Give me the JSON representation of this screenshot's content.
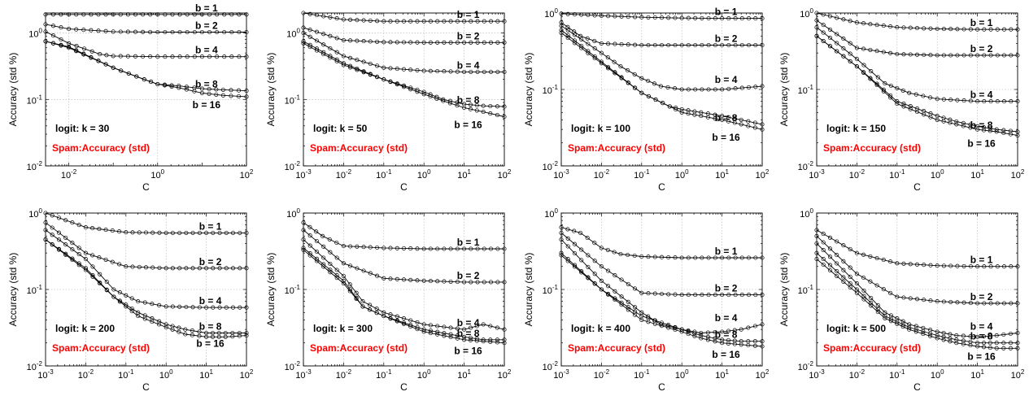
{
  "chart_data": [
    {
      "type": "line",
      "log_x": true,
      "log_y": true,
      "xlabel": "C",
      "ylabel": "Accuracy (std %)",
      "xlim": [
        0.003,
        100
      ],
      "ylim": [
        0.01,
        2
      ],
      "xticks": [
        "10^-2",
        "10^0",
        "10^2"
      ],
      "yticks": [
        "10^-2",
        "10^-1",
        "10^0"
      ],
      "annotations": [
        "logit: k = 30",
        "Spam:Accuracy (std)"
      ],
      "series": [
        {
          "name": "b = 1",
          "x": [
            0.003,
            0.01,
            0.1,
            1,
            10,
            100
          ],
          "values": [
            1.9,
            1.9,
            1.9,
            1.9,
            1.9,
            1.9
          ]
        },
        {
          "name": "b = 2",
          "x": [
            0.003,
            0.01,
            0.1,
            1,
            10,
            100
          ],
          "values": [
            1.35,
            1.15,
            1.05,
            1.03,
            1.03,
            1.03
          ]
        },
        {
          "name": "b = 4",
          "x": [
            0.003,
            0.01,
            0.05,
            0.1,
            1,
            10,
            100
          ],
          "values": [
            1.05,
            0.7,
            0.48,
            0.45,
            0.44,
            0.44,
            0.44
          ]
        },
        {
          "name": "b = 8",
          "x": [
            0.003,
            0.01,
            0.1,
            0.5,
            1,
            3,
            10,
            30,
            100
          ],
          "values": [
            0.75,
            0.62,
            0.3,
            0.2,
            0.17,
            0.16,
            0.145,
            0.14,
            0.135
          ]
        },
        {
          "name": "b = 16",
          "x": [
            0.003,
            0.01,
            0.1,
            0.5,
            1,
            3,
            10,
            30,
            100
          ],
          "values": [
            0.75,
            0.6,
            0.3,
            0.2,
            0.17,
            0.15,
            0.125,
            0.115,
            0.11
          ]
        }
      ]
    },
    {
      "type": "line",
      "log_x": true,
      "log_y": true,
      "xlabel": "C",
      "ylabel": "Accuracy (std %)",
      "xlim": [
        0.001,
        100
      ],
      "ylim": [
        0.01,
        2
      ],
      "xticks": [
        "10^-3",
        "10^-2",
        "10^-1",
        "10^0",
        "10^1",
        "10^2"
      ],
      "yticks": [
        "10^-2",
        "10^-1",
        "10^0"
      ],
      "annotations": [
        "logit: k = 50",
        "Spam:Accuracy (std)"
      ],
      "series": [
        {
          "name": "b = 1",
          "x": [
            0.001,
            0.01,
            0.1,
            1,
            10,
            100
          ],
          "values": [
            2.0,
            1.6,
            1.5,
            1.5,
            1.5,
            1.5
          ]
        },
        {
          "name": "b = 2",
          "x": [
            0.001,
            0.01,
            0.1,
            1,
            10,
            100
          ],
          "values": [
            1.2,
            0.78,
            0.73,
            0.72,
            0.72,
            0.72
          ]
        },
        {
          "name": "b = 4",
          "x": [
            0.001,
            0.01,
            0.1,
            1,
            10,
            100
          ],
          "values": [
            1.0,
            0.45,
            0.3,
            0.27,
            0.26,
            0.26
          ]
        },
        {
          "name": "b = 8",
          "x": [
            0.001,
            0.01,
            0.1,
            1,
            3,
            10,
            30,
            100
          ],
          "values": [
            0.75,
            0.35,
            0.2,
            0.13,
            0.1,
            0.085,
            0.08,
            0.078
          ]
        },
        {
          "name": "b = 16",
          "x": [
            0.001,
            0.01,
            0.1,
            1,
            3,
            10,
            30,
            100
          ],
          "values": [
            0.7,
            0.33,
            0.2,
            0.12,
            0.095,
            0.075,
            0.065,
            0.055
          ]
        }
      ]
    },
    {
      "type": "line",
      "log_x": true,
      "log_y": true,
      "xlabel": "C",
      "ylabel": "Accuracy (std %)",
      "xlim": [
        0.001,
        100
      ],
      "ylim": [
        0.01,
        1
      ],
      "xticks": [
        "10^-3",
        "10^-2",
        "10^-1",
        "10^0",
        "10^1",
        "10^2"
      ],
      "yticks": [
        "10^-2",
        "10^-1",
        "10^0"
      ],
      "annotations": [
        "logit: k = 100",
        "Spam:Accuracy (std)"
      ],
      "series": [
        {
          "name": "b = 1",
          "x": [
            0.001,
            0.01,
            0.1,
            1,
            10,
            100
          ],
          "values": [
            0.98,
            0.92,
            0.88,
            0.86,
            0.85,
            0.85
          ]
        },
        {
          "name": "b = 2",
          "x": [
            0.001,
            0.003,
            0.01,
            0.1,
            1,
            10,
            100
          ],
          "values": [
            0.75,
            0.5,
            0.4,
            0.38,
            0.38,
            0.38,
            0.38
          ]
        },
        {
          "name": "b = 4",
          "x": [
            0.001,
            0.01,
            0.03,
            0.1,
            0.3,
            1,
            10,
            100
          ],
          "values": [
            0.68,
            0.3,
            0.2,
            0.14,
            0.11,
            0.1,
            0.1,
            0.11
          ]
        },
        {
          "name": "b = 8",
          "x": [
            0.001,
            0.01,
            0.1,
            0.5,
            1,
            3,
            10,
            30,
            100
          ],
          "values": [
            0.6,
            0.23,
            0.09,
            0.06,
            0.055,
            0.05,
            0.045,
            0.04,
            0.035
          ]
        },
        {
          "name": "b = 16",
          "x": [
            0.001,
            0.01,
            0.1,
            0.5,
            1,
            3,
            10,
            30,
            100
          ],
          "values": [
            0.55,
            0.22,
            0.09,
            0.06,
            0.05,
            0.045,
            0.04,
            0.035,
            0.03
          ]
        }
      ]
    },
    {
      "type": "line",
      "log_x": true,
      "log_y": true,
      "xlabel": "C",
      "ylabel": "Accuracy (std %)",
      "xlim": [
        0.001,
        100
      ],
      "ylim": [
        0.01,
        1
      ],
      "xticks": [
        "10^-3",
        "10^-2",
        "10^-1",
        "10^0",
        "10^1",
        "10^2"
      ],
      "yticks": [
        "10^-2",
        "10^-1",
        "10^0"
      ],
      "annotations": [
        "logit: k = 150",
        "Spam:Accuracy (std)"
      ],
      "series": [
        {
          "name": "b = 1",
          "x": [
            0.001,
            0.01,
            0.1,
            1,
            10,
            100
          ],
          "values": [
            1.0,
            0.75,
            0.65,
            0.62,
            0.61,
            0.61
          ]
        },
        {
          "name": "b = 2",
          "x": [
            0.001,
            0.01,
            0.1,
            1,
            10,
            100
          ],
          "values": [
            0.8,
            0.35,
            0.29,
            0.28,
            0.28,
            0.28
          ]
        },
        {
          "name": "b = 4",
          "x": [
            0.001,
            0.01,
            0.05,
            0.2,
            1,
            10,
            100
          ],
          "values": [
            0.65,
            0.25,
            0.12,
            0.09,
            0.075,
            0.07,
            0.07
          ]
        },
        {
          "name": "b = 8",
          "x": [
            0.001,
            0.01,
            0.1,
            1,
            3,
            10,
            30,
            100
          ],
          "values": [
            0.5,
            0.2,
            0.07,
            0.045,
            0.038,
            0.033,
            0.03,
            0.028
          ]
        },
        {
          "name": "b = 16",
          "x": [
            0.001,
            0.01,
            0.1,
            1,
            3,
            10,
            30,
            100
          ],
          "values": [
            0.5,
            0.2,
            0.065,
            0.04,
            0.035,
            0.03,
            0.028,
            0.025
          ]
        }
      ]
    },
    {
      "type": "line",
      "log_x": true,
      "log_y": true,
      "xlabel": "C",
      "ylabel": "Accuracy (std %)",
      "xlim": [
        0.001,
        100
      ],
      "ylim": [
        0.01,
        1
      ],
      "xticks": [
        "10^-3",
        "10^-2",
        "10^-1",
        "10^0",
        "10^1",
        "10^2"
      ],
      "yticks": [
        "10^-2",
        "10^-1",
        "10^0"
      ],
      "annotations": [
        "logit: k = 200",
        "Spam:Accuracy (std)"
      ],
      "series": [
        {
          "name": "b = 1",
          "x": [
            0.001,
            0.01,
            0.1,
            1,
            10,
            100
          ],
          "values": [
            1.0,
            0.65,
            0.56,
            0.55,
            0.55,
            0.55
          ]
        },
        {
          "name": "b = 2",
          "x": [
            0.001,
            0.01,
            0.1,
            1,
            10,
            100
          ],
          "values": [
            0.75,
            0.3,
            0.2,
            0.19,
            0.19,
            0.19
          ]
        },
        {
          "name": "b = 4",
          "x": [
            0.001,
            0.01,
            0.05,
            0.2,
            1,
            10,
            100
          ],
          "values": [
            0.6,
            0.25,
            0.1,
            0.07,
            0.06,
            0.058,
            0.058
          ]
        },
        {
          "name": "b = 8",
          "x": [
            0.001,
            0.01,
            0.05,
            0.2,
            1,
            3,
            10,
            30,
            100
          ],
          "values": [
            0.45,
            0.19,
            0.08,
            0.05,
            0.035,
            0.03,
            0.027,
            0.027,
            0.027
          ]
        },
        {
          "name": "b = 16",
          "x": [
            0.001,
            0.01,
            0.05,
            0.2,
            1,
            3,
            10,
            30,
            100
          ],
          "values": [
            0.45,
            0.18,
            0.08,
            0.045,
            0.032,
            0.026,
            0.024,
            0.024,
            0.025
          ]
        }
      ]
    },
    {
      "type": "line",
      "log_x": true,
      "log_y": true,
      "xlabel": "C",
      "ylabel": "Accuracy (std %)",
      "xlim": [
        0.001,
        100
      ],
      "ylim": [
        0.01,
        1
      ],
      "xticks": [
        "10^-3",
        "10^-2",
        "10^-1",
        "10^0",
        "10^1",
        "10^2"
      ],
      "yticks": [
        "10^-2",
        "10^-1",
        "10^0"
      ],
      "annotations": [
        "logit: k = 300",
        "Spam:Accuracy (std)"
      ],
      "series": [
        {
          "name": "b = 1",
          "x": [
            0.001,
            0.003,
            0.01,
            0.1,
            1,
            10,
            100
          ],
          "values": [
            0.75,
            0.5,
            0.37,
            0.35,
            0.34,
            0.34,
            0.34
          ]
        },
        {
          "name": "b = 2",
          "x": [
            0.001,
            0.01,
            0.1,
            1,
            10,
            100
          ],
          "values": [
            0.6,
            0.22,
            0.14,
            0.13,
            0.125,
            0.125
          ]
        },
        {
          "name": "b = 4",
          "x": [
            0.001,
            0.01,
            0.03,
            0.1,
            1,
            10,
            30,
            100
          ],
          "values": [
            0.45,
            0.15,
            0.07,
            0.05,
            0.035,
            0.03,
            0.035,
            0.03
          ]
        },
        {
          "name": "b = 8",
          "x": [
            0.001,
            0.01,
            0.03,
            0.1,
            1,
            10,
            30,
            100
          ],
          "values": [
            0.35,
            0.13,
            0.06,
            0.045,
            0.03,
            0.024,
            0.022,
            0.022
          ]
        },
        {
          "name": "b = 16",
          "x": [
            0.001,
            0.01,
            0.03,
            0.1,
            1,
            10,
            30,
            100
          ],
          "values": [
            0.33,
            0.12,
            0.06,
            0.045,
            0.028,
            0.022,
            0.021,
            0.02
          ]
        }
      ]
    },
    {
      "type": "line",
      "log_x": true,
      "log_y": true,
      "xlabel": "C",
      "ylabel": "Accuracy (std %)",
      "xlim": [
        0.001,
        100
      ],
      "ylim": [
        0.01,
        1
      ],
      "xticks": [
        "10^-3",
        "10^-2",
        "10^-1",
        "10^0",
        "10^1",
        "10^2"
      ],
      "yticks": [
        "10^-2",
        "10^-1",
        "10^0"
      ],
      "annotations": [
        "logit: k = 400",
        "Spam:Accuracy (std)"
      ],
      "series": [
        {
          "name": "b = 1",
          "x": [
            0.001,
            0.003,
            0.01,
            0.03,
            0.1,
            1,
            10,
            100
          ],
          "values": [
            0.65,
            0.55,
            0.35,
            0.29,
            0.27,
            0.26,
            0.26,
            0.26
          ]
        },
        {
          "name": "b = 2",
          "x": [
            0.001,
            0.01,
            0.1,
            1,
            10,
            100
          ],
          "values": [
            0.55,
            0.2,
            0.09,
            0.085,
            0.085,
            0.085
          ]
        },
        {
          "name": "b = 4",
          "x": [
            0.001,
            0.01,
            0.1,
            0.3,
            1,
            3,
            10,
            30,
            100
          ],
          "values": [
            0.45,
            0.13,
            0.05,
            0.035,
            0.03,
            0.027,
            0.028,
            0.03,
            0.035
          ]
        },
        {
          "name": "b = 8",
          "x": [
            0.001,
            0.01,
            0.1,
            1,
            3,
            10,
            30,
            100
          ],
          "values": [
            0.3,
            0.1,
            0.045,
            0.03,
            0.025,
            0.022,
            0.021,
            0.021
          ]
        },
        {
          "name": "b = 16",
          "x": [
            0.001,
            0.01,
            0.1,
            1,
            3,
            10,
            30,
            100
          ],
          "values": [
            0.28,
            0.1,
            0.04,
            0.028,
            0.023,
            0.02,
            0.019,
            0.018
          ]
        }
      ]
    },
    {
      "type": "line",
      "log_x": true,
      "log_y": true,
      "xlabel": "C",
      "ylabel": "Accuracy (std %)",
      "xlim": [
        0.001,
        100
      ],
      "ylim": [
        0.01,
        1
      ],
      "xticks": [
        "10^-3",
        "10^-2",
        "10^-1",
        "10^0",
        "10^1",
        "10^2"
      ],
      "yticks": [
        "10^-2",
        "10^-1",
        "10^0"
      ],
      "annotations": [
        "logit: k = 500",
        "Spam:Accuracy (std)"
      ],
      "series": [
        {
          "name": "b = 1",
          "x": [
            0.001,
            0.01,
            0.1,
            1,
            10,
            100
          ],
          "values": [
            0.6,
            0.3,
            0.22,
            0.205,
            0.2,
            0.2
          ]
        },
        {
          "name": "b = 2",
          "x": [
            0.001,
            0.01,
            0.1,
            1,
            10,
            100
          ],
          "values": [
            0.5,
            0.16,
            0.08,
            0.07,
            0.066,
            0.066
          ]
        },
        {
          "name": "b = 4",
          "x": [
            0.001,
            0.01,
            0.05,
            0.2,
            1,
            3,
            10,
            30,
            100
          ],
          "values": [
            0.4,
            0.12,
            0.05,
            0.035,
            0.028,
            0.025,
            0.024,
            0.025,
            0.027
          ]
        },
        {
          "name": "b = 8",
          "x": [
            0.001,
            0.01,
            0.05,
            0.2,
            1,
            3,
            10,
            30,
            100
          ],
          "values": [
            0.3,
            0.1,
            0.045,
            0.032,
            0.025,
            0.022,
            0.02,
            0.02,
            0.02
          ]
        },
        {
          "name": "b = 16",
          "x": [
            0.001,
            0.01,
            0.05,
            0.2,
            1,
            3,
            10,
            30,
            100
          ],
          "values": [
            0.25,
            0.09,
            0.042,
            0.03,
            0.023,
            0.02,
            0.018,
            0.017,
            0.017
          ]
        }
      ]
    }
  ]
}
